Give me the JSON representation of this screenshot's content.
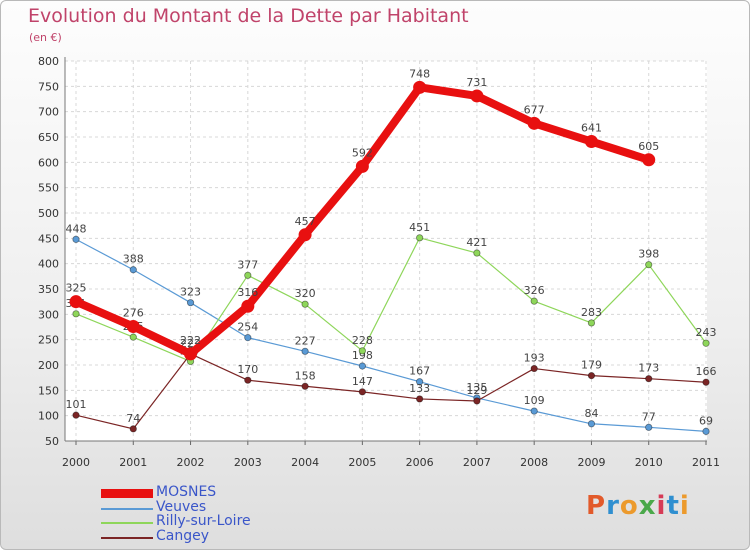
{
  "title": "Evolution du Montant de la Dette par Habitant",
  "subtitle": "(en €)",
  "logo": {
    "letters": [
      "P",
      "r",
      "o",
      "x",
      "i",
      "t",
      "i"
    ],
    "colors": [
      "#e25a2b",
      "#2f8fd0",
      "#ec9a2c",
      "#4aa84a",
      "#d63b56",
      "#2f8fd0",
      "#ec9a2c"
    ]
  },
  "chart_data": {
    "type": "line",
    "x": [
      "2000",
      "2001",
      "2002",
      "2003",
      "2004",
      "2005",
      "2006",
      "2007",
      "2008",
      "2009",
      "2010",
      "2011"
    ],
    "ylim": [
      50,
      800
    ],
    "yticks": [
      50,
      100,
      150,
      200,
      250,
      300,
      350,
      400,
      450,
      500,
      550,
      600,
      650,
      700,
      750,
      800
    ],
    "grid": true,
    "legend_position": "bottom-left",
    "series": [
      {
        "name": "MOSNES",
        "color": "#e81010",
        "width": 8,
        "values": [
          325,
          276,
          222,
          316,
          457,
          592,
          748,
          731,
          677,
          641,
          605,
          null
        ]
      },
      {
        "name": "Veuves",
        "color": "#5a9ad5",
        "width": 1.2,
        "values": [
          448,
          388,
          323,
          254,
          227,
          198,
          167,
          135,
          109,
          84,
          77,
          69
        ]
      },
      {
        "name": "Rilly-sur-Loire",
        "color": "#8ed65a",
        "width": 1.2,
        "values": [
          301,
          255,
          207,
          377,
          320,
          228,
          451,
          421,
          326,
          283,
          398,
          243
        ]
      },
      {
        "name": "Cangey",
        "color": "#7b2525",
        "width": 1.2,
        "values": [
          101,
          74,
          222,
          170,
          158,
          147,
          133,
          129,
          193,
          179,
          173,
          166
        ]
      }
    ]
  }
}
